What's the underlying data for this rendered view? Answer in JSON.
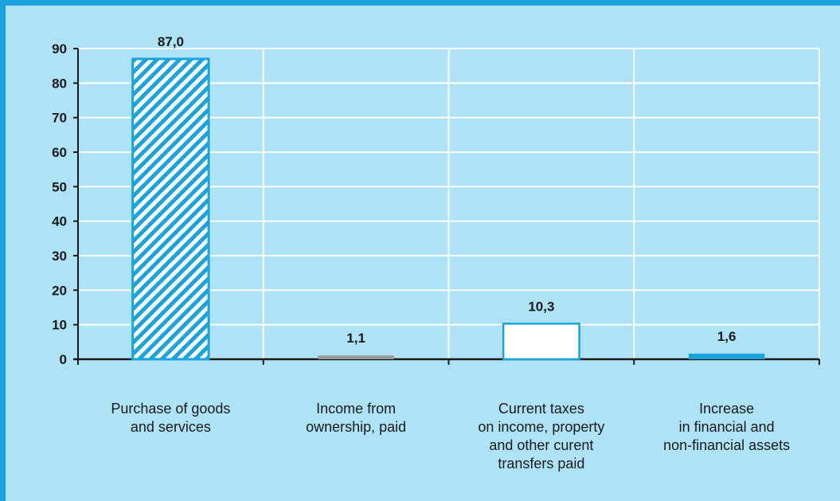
{
  "chart_data": {
    "type": "bar",
    "categories": [
      [
        "Purchase of goods",
        "and services"
      ],
      [
        "Income from",
        "ownership, paid"
      ],
      [
        "Current taxes",
        "on income, property",
        "and other curent",
        "transfers paid"
      ],
      [
        "Increase",
        "in financial and",
        "non-financial assets"
      ]
    ],
    "values": [
      87.0,
      1.1,
      10.3,
      1.6
    ],
    "value_labels": [
      "87,0",
      "1,1",
      "10,3",
      "1,6"
    ],
    "ylim": [
      0,
      90
    ],
    "yticks": [
      0,
      10,
      20,
      30,
      40,
      50,
      60,
      70,
      80,
      90
    ],
    "grid": true,
    "title": "",
    "xlabel": "",
    "ylabel": "",
    "bar_styles": [
      "hatched",
      "solid",
      "outline",
      "solid"
    ],
    "bar_colors": [
      "#1aa3dc",
      "#9a9a9a",
      "#1aa3dc",
      "#1aa3dc"
    ]
  },
  "colors": {
    "background": "#aee3f7",
    "border": "#1aa3dc",
    "gridline": "#ffffff",
    "axis": "#1a1a1a"
  }
}
